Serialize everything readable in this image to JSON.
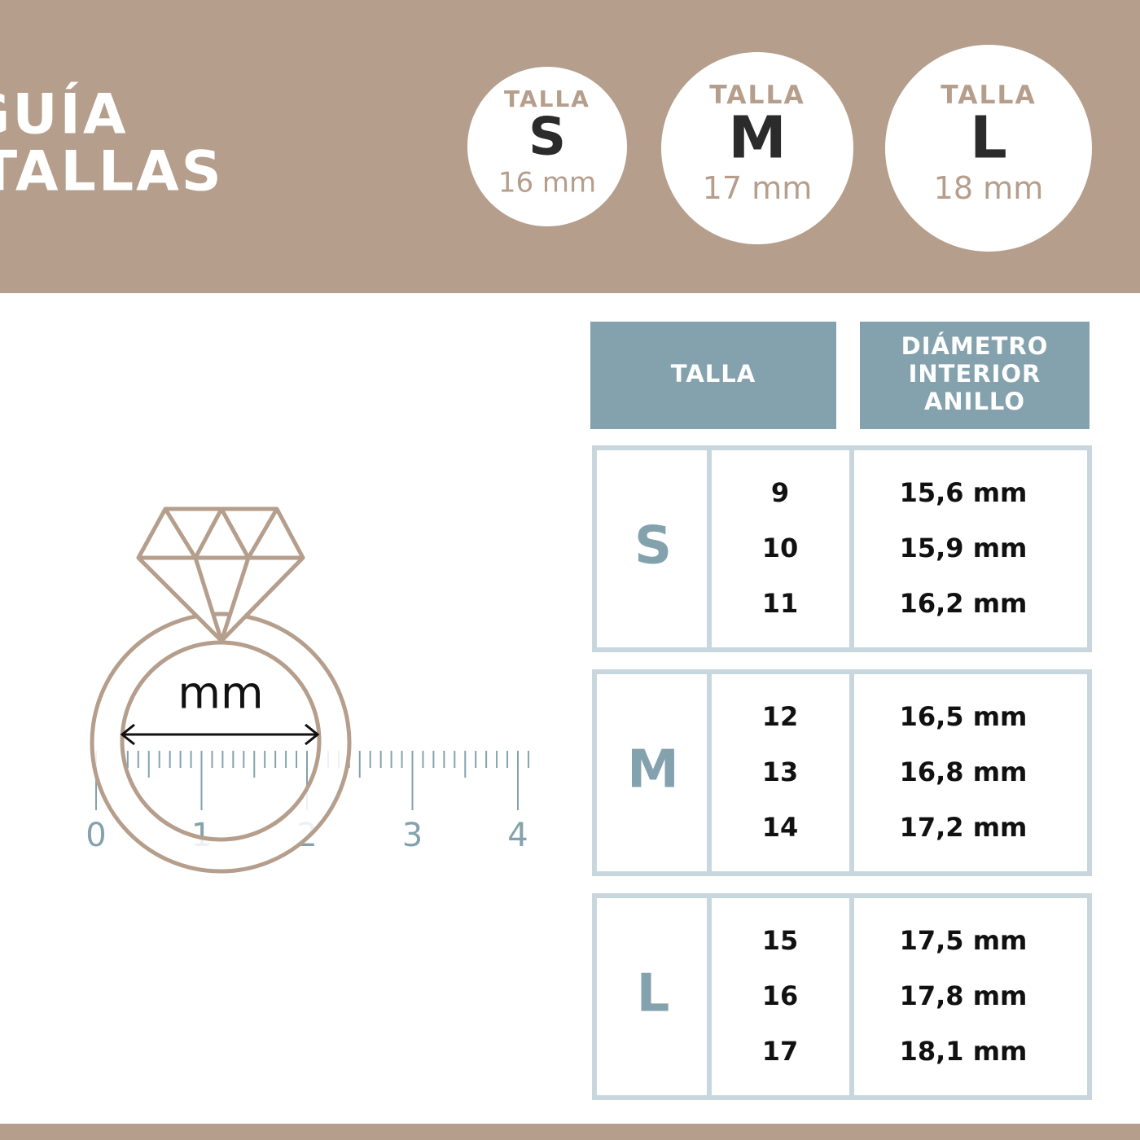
{
  "header": {
    "title": [
      "GUÍA",
      "DE TALLAS"
    ],
    "sizes": [
      {
        "label": "TALLA",
        "size": "S",
        "diameter": "16 mm"
      },
      {
        "label": "TALLA",
        "size": "M",
        "diameter": "17 mm"
      },
      {
        "label": "TALLA",
        "size": "L",
        "diameter": "18 mm"
      }
    ]
  },
  "illustration": {
    "measure_label": "mm",
    "ruler_labels": [
      "0",
      "1",
      "2",
      "3",
      "4"
    ]
  },
  "table": {
    "headers": [
      [
        "TALLA"
      ],
      [
        "DIÁMETRO",
        "INTERIOR",
        "ANILLO"
      ]
    ],
    "groups": [
      {
        "size": "S",
        "rows": [
          [
            "9",
            "15,6 mm"
          ],
          [
            "10",
            "15,9 mm"
          ],
          [
            "11",
            "16,2 mm"
          ]
        ]
      },
      {
        "size": "M",
        "rows": [
          [
            "12",
            "16,5 mm"
          ],
          [
            "13",
            "16,8 mm"
          ],
          [
            "14",
            "17,2 mm"
          ]
        ]
      },
      {
        "size": "L",
        "rows": [
          [
            "15",
            "17,5 mm"
          ],
          [
            "16",
            "17,8 mm"
          ],
          [
            "17",
            "18,1 mm"
          ]
        ]
      }
    ]
  }
}
